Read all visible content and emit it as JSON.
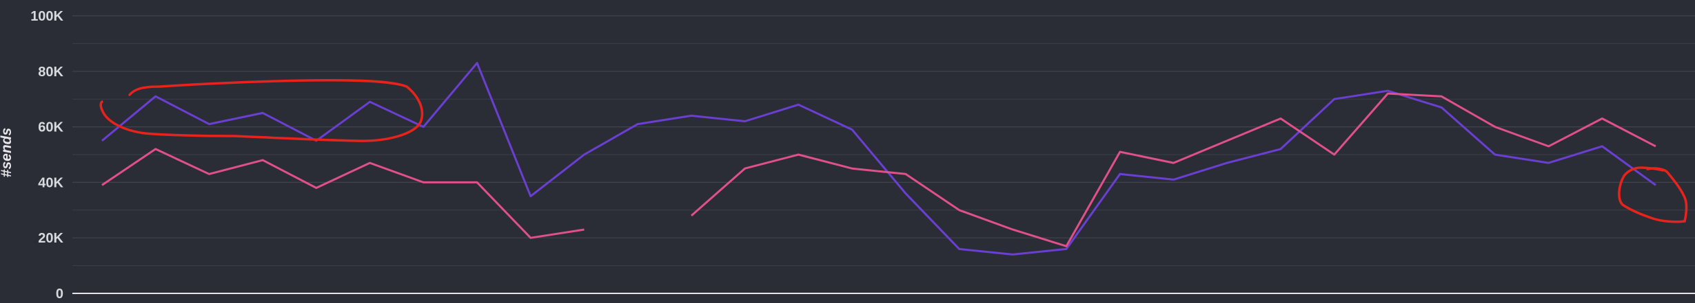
{
  "chart_data": {
    "type": "line",
    "title": "",
    "xlabel": "",
    "ylabel": "#sends",
    "ylim": [
      0,
      100000
    ],
    "yticks": [
      {
        "value": 0,
        "label": "0"
      },
      {
        "value": 20000,
        "label": "20K"
      },
      {
        "value": 40000,
        "label": "40K"
      },
      {
        "value": 60000,
        "label": "60K"
      },
      {
        "value": 80000,
        "label": "80K"
      },
      {
        "value": 100000,
        "label": "100K"
      }
    ],
    "grid": true,
    "minor_grid": true,
    "x": [
      1,
      2,
      3,
      4,
      5,
      6,
      7,
      8,
      9,
      10,
      11,
      12,
      13,
      14,
      15,
      16,
      17,
      18,
      19,
      20,
      21,
      22,
      23,
      24,
      25,
      26,
      27,
      28,
      29,
      30
    ],
    "series": [
      {
        "color": "#6a3fd1",
        "values": [
          55000,
          71000,
          61000,
          65000,
          55000,
          69000,
          60000,
          83000,
          35000,
          50000,
          61000,
          64000,
          62000,
          68000,
          59000,
          36000,
          16000,
          14000,
          16000,
          43000,
          41000,
          47000,
          52000,
          70000,
          73000,
          67000,
          50000,
          47000,
          53000,
          39000
        ]
      },
      {
        "color": "#e0508a",
        "values": [
          39000,
          52000,
          43000,
          48000,
          38000,
          47000,
          40000,
          40000,
          20000,
          23000,
          null,
          28000,
          45000,
          50000,
          45000,
          43000,
          30000,
          23000,
          17000,
          51000,
          47000,
          55000,
          63000,
          50000,
          72000,
          71000,
          60000,
          53000,
          63000,
          53000
        ]
      }
    ],
    "annotations": [
      {
        "type": "freehand-loop",
        "color": "#e8231c",
        "note": "red hand-drawn loop around first ~6 points"
      },
      {
        "type": "freehand-loop",
        "color": "#e8231c",
        "note": "red hand-drawn loop at right end"
      }
    ],
    "background": "#2a2d36",
    "gridcolor": "#3a3e49",
    "axiscolor": "#e6e6ea"
  }
}
